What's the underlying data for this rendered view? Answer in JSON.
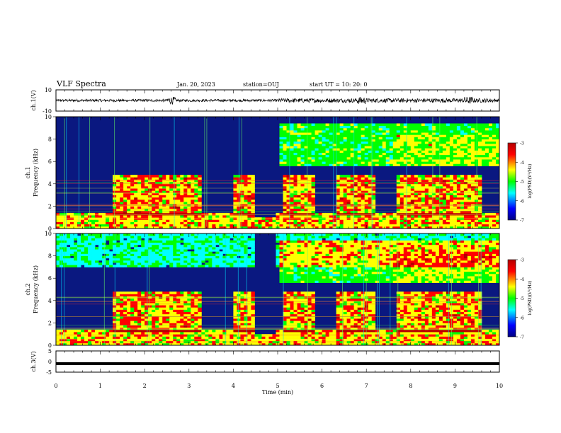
{
  "header": {
    "title": "VLF Spectra",
    "date": "Jan. 20, 2023",
    "station": "station=OUJ",
    "start": "start  UT =   10: 20: 0"
  },
  "chart_data": [
    {
      "type": "line",
      "ylabel": "ch.1(V)",
      "ylim": [
        -10,
        10
      ],
      "yticks": [
        "10",
        "-10"
      ],
      "xlim": [
        0,
        10
      ],
      "description_values": {
        "typical_amplitude": [
          -1.5,
          1.5
        ]
      }
    },
    {
      "type": "heatmap",
      "ylabel_line1": "ch.1",
      "ylabel_line2": "Frequency (kHz)",
      "ylim": [
        0,
        10
      ],
      "yticks": [
        "0",
        "2",
        "4",
        "6",
        "8",
        "10"
      ],
      "xlim": [
        0,
        10
      ],
      "colorbar": {
        "label": "log(PSD)(V²/Hz)",
        "range": [
          -7,
          -3
        ],
        "ticks": [
          "-3",
          "-4",
          "-5",
          "-6",
          "-7"
        ]
      }
    },
    {
      "type": "heatmap",
      "ylabel_line1": "ch.2",
      "ylabel_line2": "Frequency (kHz)",
      "ylim": [
        0,
        10
      ],
      "yticks": [
        "0",
        "2",
        "4",
        "6",
        "8",
        "10"
      ],
      "xlim": [
        0,
        10
      ],
      "colorbar": {
        "label": "log(PSD)(V²/Hz)",
        "range": [
          -7,
          -3
        ],
        "ticks": [
          "-3",
          "-4",
          "-5",
          "-6",
          "-7"
        ]
      }
    },
    {
      "type": "line",
      "ylabel": "ch.3(V)",
      "ylim": [
        -5,
        5
      ],
      "yticks": [
        "5",
        "0",
        "-5"
      ],
      "xlim": [
        0,
        10
      ],
      "series": [
        {
          "x": [
            0,
            10
          ],
          "y": [
            -1,
            -1
          ]
        }
      ]
    }
  ],
  "xaxis": {
    "label": "Time (min)",
    "ticks": [
      "0",
      "1",
      "2",
      "3",
      "4",
      "5",
      "6",
      "7",
      "8",
      "9",
      "10"
    ]
  },
  "colors": {
    "spectrogram_background": "#0a1880",
    "colormap": [
      "#000080",
      "#0000ff",
      "#00ffff",
      "#00ff00",
      "#ffff00",
      "#ff0000",
      "#b40000"
    ]
  }
}
